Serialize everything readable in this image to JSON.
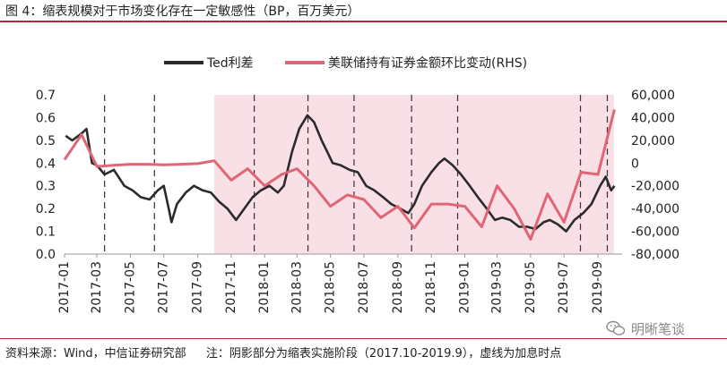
{
  "title": "图 4：缩表规模对于市场变化存在一定敏感性（BP，百万美元）",
  "footer": {
    "source": "资料来源：Wind，中信证券研究部",
    "note": "注：阴影部分为缩表实施阶段（2017.10-2019.9），虚线为加息时点"
  },
  "watermark": {
    "text": "明晰笔谈",
    "icon": "wechat-icon"
  },
  "colors": {
    "ted": "#2b2b2b",
    "fed": "#e06575",
    "shade": "#f9e0e6",
    "accent": "#b22a36"
  },
  "chart_data": {
    "type": "line",
    "x_labels": [
      "2017-01",
      "2017-03",
      "2017-05",
      "2017-07",
      "2017-09",
      "2017-11",
      "2018-01",
      "2018-03",
      "2018-05",
      "2018-07",
      "2018-09",
      "2018-11",
      "2019-01",
      "2019-03",
      "2019-05",
      "2019-07",
      "2019-09"
    ],
    "y_left": {
      "ticks": [
        "0.0",
        "0.1",
        "0.2",
        "0.3",
        "0.4",
        "0.5",
        "0.6",
        "0.7"
      ],
      "min": 0,
      "max": 0.7
    },
    "y_right": {
      "ticks": [
        "-80,000",
        "-60,000",
        "-40,000",
        "-20,000",
        "0",
        "20,000",
        "40,000",
        "60,000"
      ],
      "min": -80000,
      "max": 60000
    },
    "shaded_range": [
      "2017-10-01",
      "2019-09-30"
    ],
    "rate_hikes": [
      "2017-03-15",
      "2017-06-14",
      "2017-12-13",
      "2018-03-21",
      "2018-06-13",
      "2018-09-26",
      "2018-12-19",
      "2019-07-31",
      "2019-09-18"
    ],
    "series": [
      {
        "name": "Ted利差",
        "axis": "left",
        "points": [
          [
            "2017-01-03",
            0.52
          ],
          [
            "2017-01-15",
            0.5
          ],
          [
            "2017-02-01",
            0.53
          ],
          [
            "2017-02-10",
            0.55
          ],
          [
            "2017-02-20",
            0.4
          ],
          [
            "2017-03-01",
            0.39
          ],
          [
            "2017-03-15",
            0.35
          ],
          [
            "2017-04-01",
            0.37
          ],
          [
            "2017-04-20",
            0.3
          ],
          [
            "2017-05-05",
            0.28
          ],
          [
            "2017-05-20",
            0.25
          ],
          [
            "2017-06-05",
            0.24
          ],
          [
            "2017-06-20",
            0.28
          ],
          [
            "2017-07-01",
            0.3
          ],
          [
            "2017-07-10",
            0.2
          ],
          [
            "2017-07-15",
            0.14
          ],
          [
            "2017-07-25",
            0.22
          ],
          [
            "2017-08-10",
            0.27
          ],
          [
            "2017-08-25",
            0.3
          ],
          [
            "2017-09-10",
            0.28
          ],
          [
            "2017-09-25",
            0.27
          ],
          [
            "2017-10-10",
            0.23
          ],
          [
            "2017-10-25",
            0.2
          ],
          [
            "2017-11-10",
            0.15
          ],
          [
            "2017-11-25",
            0.2
          ],
          [
            "2017-12-10",
            0.25
          ],
          [
            "2017-12-25",
            0.28
          ],
          [
            "2018-01-10",
            0.3
          ],
          [
            "2018-01-25",
            0.27
          ],
          [
            "2018-02-05",
            0.3
          ],
          [
            "2018-02-20",
            0.45
          ],
          [
            "2018-03-05",
            0.55
          ],
          [
            "2018-03-20",
            0.61
          ],
          [
            "2018-04-01",
            0.58
          ],
          [
            "2018-04-15",
            0.5
          ],
          [
            "2018-04-25",
            0.45
          ],
          [
            "2018-05-05",
            0.4
          ],
          [
            "2018-05-20",
            0.39
          ],
          [
            "2018-06-05",
            0.37
          ],
          [
            "2018-06-20",
            0.36
          ],
          [
            "2018-07-05",
            0.3
          ],
          [
            "2018-07-20",
            0.28
          ],
          [
            "2018-08-05",
            0.25
          ],
          [
            "2018-08-20",
            0.22
          ],
          [
            "2018-09-05",
            0.2
          ],
          [
            "2018-09-20",
            0.18
          ],
          [
            "2018-10-01",
            0.22
          ],
          [
            "2018-10-15",
            0.3
          ],
          [
            "2018-11-01",
            0.36
          ],
          [
            "2018-11-15",
            0.4
          ],
          [
            "2018-11-25",
            0.42
          ],
          [
            "2018-12-10",
            0.39
          ],
          [
            "2018-12-25",
            0.35
          ],
          [
            "2019-01-10",
            0.3
          ],
          [
            "2019-01-25",
            0.25
          ],
          [
            "2019-02-10",
            0.2
          ],
          [
            "2019-02-25",
            0.15
          ],
          [
            "2019-03-10",
            0.16
          ],
          [
            "2019-03-25",
            0.15
          ],
          [
            "2019-04-10",
            0.12
          ],
          [
            "2019-04-25",
            0.12
          ],
          [
            "2019-05-10",
            0.11
          ],
          [
            "2019-05-25",
            0.14
          ],
          [
            "2019-06-05",
            0.15
          ],
          [
            "2019-06-20",
            0.13
          ],
          [
            "2019-07-05",
            0.1
          ],
          [
            "2019-07-20",
            0.15
          ],
          [
            "2019-08-05",
            0.18
          ],
          [
            "2019-08-20",
            0.22
          ],
          [
            "2019-09-05",
            0.3
          ],
          [
            "2019-09-15",
            0.34
          ],
          [
            "2019-09-25",
            0.28
          ],
          [
            "2019-10-01",
            0.3
          ]
        ]
      },
      {
        "name": "美联储持有证券金额环比变动(RHS)",
        "axis": "right",
        "points": [
          [
            "2017-01-01",
            3000
          ],
          [
            "2017-02-01",
            25000
          ],
          [
            "2017-03-01",
            -3000
          ],
          [
            "2017-04-01",
            -2000
          ],
          [
            "2017-05-01",
            -1000
          ],
          [
            "2017-06-01",
            -1000
          ],
          [
            "2017-07-01",
            -1500
          ],
          [
            "2017-08-01",
            -1000
          ],
          [
            "2017-09-01",
            -500
          ],
          [
            "2017-10-01",
            2000
          ],
          [
            "2017-11-01",
            -15000
          ],
          [
            "2017-12-01",
            -5000
          ],
          [
            "2018-01-01",
            -20000
          ],
          [
            "2018-02-01",
            -10000
          ],
          [
            "2018-03-01",
            -5000
          ],
          [
            "2018-04-01",
            -20000
          ],
          [
            "2018-05-01",
            -38000
          ],
          [
            "2018-06-01",
            -28000
          ],
          [
            "2018-07-01",
            -32000
          ],
          [
            "2018-08-01",
            -48000
          ],
          [
            "2018-09-01",
            -38000
          ],
          [
            "2018-10-01",
            -57000
          ],
          [
            "2018-11-01",
            -36000
          ],
          [
            "2018-12-01",
            -36000
          ],
          [
            "2019-01-01",
            -38000
          ],
          [
            "2019-02-01",
            -56000
          ],
          [
            "2019-03-01",
            -20000
          ],
          [
            "2019-04-01",
            -40000
          ],
          [
            "2019-05-01",
            -67000
          ],
          [
            "2019-06-01",
            -27000
          ],
          [
            "2019-07-01",
            -52000
          ],
          [
            "2019-08-01",
            -8000
          ],
          [
            "2019-09-01",
            -10000
          ],
          [
            "2019-10-01",
            47000
          ]
        ]
      }
    ]
  }
}
